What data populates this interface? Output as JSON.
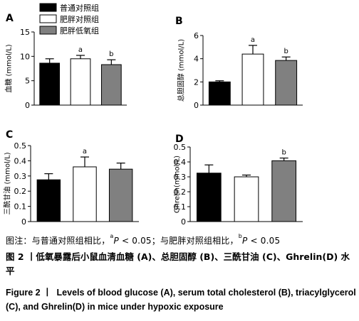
{
  "legend": [
    {
      "label": "普通对照组",
      "fill": "#000000"
    },
    {
      "label": "肥胖对照组",
      "fill": "#ffffff"
    },
    {
      "label": "肥胖低氧组",
      "fill": "#808080"
    }
  ],
  "chart_data": [
    {
      "panel": "A",
      "type": "bar",
      "categories": [
        "普通对照组",
        "肥胖对照组",
        "肥胖低氧组"
      ],
      "ylabel": "血糖 (mmol/L)",
      "ylim": [
        0,
        15
      ],
      "yticks": [
        "0",
        "5",
        "10",
        "15"
      ],
      "series": [
        {
          "values": [
            8.6,
            9.5,
            8.3
          ],
          "errors": [
            0.9,
            0.7,
            1.0
          ]
        }
      ],
      "annotations": [
        "",
        "a",
        "b"
      ]
    },
    {
      "panel": "B",
      "type": "bar",
      "categories": [
        "普通对照组",
        "肥胖对照组",
        "肥胖低氧组"
      ],
      "ylabel": "总胆固醇 (mmol/L)",
      "ylim": [
        0,
        6
      ],
      "yticks": [
        "0",
        "2",
        "4",
        "6"
      ],
      "series": [
        {
          "values": [
            2.0,
            4.4,
            3.85
          ],
          "errors": [
            0.1,
            0.75,
            0.3
          ]
        }
      ],
      "annotations": [
        "",
        "a",
        "b"
      ]
    },
    {
      "panel": "C",
      "type": "bar",
      "categories": [
        "普通对照组",
        "肥胖对照组",
        "肥胖低氧组"
      ],
      "ylabel": "三酰甘油 (mmol/L)",
      "ylim": [
        0,
        0.5
      ],
      "yticks": [
        "0",
        "0.1",
        "0.2",
        "0.3",
        "0.4",
        "0.5"
      ],
      "series": [
        {
          "values": [
            0.275,
            0.36,
            0.345
          ],
          "errors": [
            0.04,
            0.065,
            0.04
          ]
        }
      ],
      "annotations": [
        "",
        "a",
        ""
      ]
    },
    {
      "panel": "D",
      "type": "bar",
      "categories": [
        "普通对照组",
        "肥胖对照组",
        "肥胖低氧组"
      ],
      "ylabel": "Ghrelin(mmol/L)",
      "ylim": [
        0,
        0.5
      ],
      "yticks": [
        "0",
        "0.1",
        "0.2",
        "0.3",
        "0.4",
        "0.5"
      ],
      "series": [
        {
          "values": [
            0.325,
            0.3,
            0.408
          ],
          "errors": [
            0.055,
            0.012,
            0.018
          ]
        }
      ],
      "annotations": [
        "",
        "",
        "b"
      ]
    }
  ],
  "caption": {
    "note_prefix": "图注：与普通对照组相比，",
    "note_a_sup": "a",
    "note_a_p": "P",
    "note_a_rest": " < 0.05；与肥胖对照组相比，",
    "note_b_sup": "b",
    "note_b_p": "P",
    "note_b_rest": " < 0.05",
    "cn": "图 2 丨低氧暴露后小鼠血清血糖 (A)、总胆固醇 (B)、三酰甘油 (C)、Ghrelin(D) 水平",
    "en_label": "Figure 2 丨",
    "en_text": "Levels of blood glucose (A), serum total cholesterol (B), triacylglycerol (C), and Ghrelin(D) in mice under hypoxic exposure"
  }
}
